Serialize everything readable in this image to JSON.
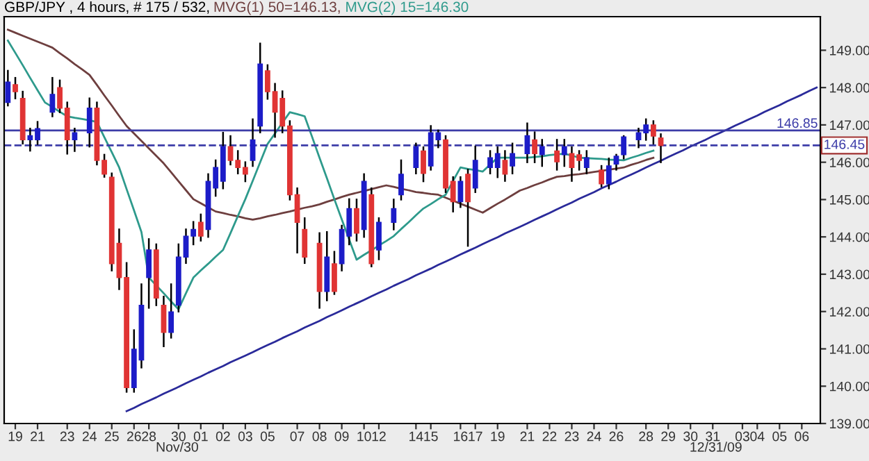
{
  "chart_data": {
    "type": "candlestick",
    "title": "GBP/JPY , 4 hours, # 175 / 532,",
    "categories": [
      null,
      "19",
      null,
      null,
      "21",
      null,
      null,
      null,
      "23",
      null,
      null,
      "24",
      null,
      null,
      "25",
      null,
      null,
      "26",
      null,
      "28",
      null,
      null,
      null,
      "30",
      null,
      null,
      "01",
      null,
      null,
      "02",
      null,
      null,
      "03",
      null,
      null,
      "05",
      null,
      null,
      null,
      "07",
      null,
      null,
      "08",
      null,
      null,
      "09",
      null,
      null,
      "10",
      null,
      "12",
      null,
      null,
      null,
      null,
      "14",
      null,
      "15",
      null,
      null,
      null,
      "16",
      null,
      "17",
      null,
      null,
      "19",
      null,
      null,
      null,
      "21",
      null,
      null,
      "22",
      null,
      null,
      "23",
      null,
      null,
      "24",
      null,
      null,
      "26",
      null,
      null,
      null,
      "28",
      null,
      null,
      "29",
      null,
      null,
      "30",
      null,
      null,
      "31",
      null,
      null,
      null,
      "03",
      null,
      "04",
      null,
      null,
      "05",
      null,
      null,
      "06",
      null,
      null
    ],
    "ohlc": [
      [
        147.6,
        148.45,
        147.52,
        148.15
      ],
      [
        148.08,
        148.26,
        147.71,
        147.89
      ],
      [
        147.71,
        147.89,
        146.5,
        146.6
      ],
      [
        146.6,
        146.9,
        146.31,
        146.71
      ],
      [
        146.6,
        147.08,
        146.49,
        146.9
      ],
      null,
      [
        147.34,
        148.26,
        147.23,
        147.82
      ],
      [
        148.0,
        148.19,
        147.34,
        147.45
      ],
      [
        147.45,
        147.6,
        146.23,
        146.6
      ],
      [
        146.6,
        146.9,
        146.3,
        146.79
      ],
      null,
      [
        146.79,
        147.71,
        146.42,
        147.45
      ],
      [
        147.45,
        147.6,
        145.94,
        146.05
      ],
      [
        146.05,
        146.2,
        145.61,
        145.68
      ],
      [
        145.6,
        145.7,
        143.1,
        143.28
      ],
      [
        143.83,
        144.2,
        142.6,
        142.91
      ],
      [
        142.91,
        143.3,
        139.85,
        139.96
      ],
      [
        139.96,
        141.5,
        139.85,
        140.99
      ],
      [
        140.7,
        142.73,
        140.5,
        142.17
      ],
      [
        142.91,
        143.94,
        142.1,
        143.65
      ],
      [
        143.65,
        143.8,
        142.17,
        142.36
      ],
      [
        142.17,
        142.4,
        141.07,
        141.44
      ],
      [
        141.44,
        142.73,
        141.3,
        141.99
      ],
      [
        142.17,
        143.8,
        142.0,
        143.46
      ],
      [
        143.46,
        144.2,
        143.3,
        144.02
      ],
      [
        144.02,
        144.4,
        143.8,
        144.2
      ],
      [
        144.39,
        144.6,
        143.9,
        144.02
      ],
      [
        144.2,
        145.68,
        144.0,
        145.49
      ],
      [
        145.31,
        146.05,
        145.1,
        145.86
      ],
      [
        145.49,
        146.79,
        145.3,
        146.42
      ],
      [
        146.42,
        146.7,
        145.94,
        146.05
      ],
      [
        146.05,
        146.3,
        145.7,
        145.86
      ],
      [
        145.86,
        146.0,
        145.49,
        145.68
      ],
      [
        146.05,
        147.15,
        145.9,
        146.6
      ],
      [
        146.97,
        149.18,
        146.8,
        148.63
      ],
      [
        148.45,
        148.6,
        147.7,
        147.89
      ],
      [
        147.89,
        148.1,
        146.68,
        147.34
      ],
      [
        147.71,
        147.9,
        146.8,
        146.97
      ],
      [
        146.97,
        147.1,
        145.0,
        145.13
      ],
      [
        145.13,
        145.3,
        143.58,
        144.39
      ],
      [
        144.2,
        144.5,
        143.3,
        143.46
      ],
      null,
      [
        143.83,
        144.1,
        142.1,
        142.54
      ],
      [
        142.54,
        144.13,
        142.3,
        143.46
      ],
      [
        143.28,
        143.6,
        142.47,
        142.54
      ],
      [
        143.28,
        144.3,
        143.1,
        144.2
      ],
      [
        144.02,
        145.01,
        143.8,
        144.76
      ],
      [
        144.76,
        145.0,
        143.9,
        144.1
      ],
      [
        144.2,
        145.68,
        144.0,
        145.49
      ],
      [
        145.13,
        145.3,
        143.21,
        143.28
      ],
      [
        143.65,
        144.5,
        143.4,
        144.39
      ],
      null,
      [
        144.39,
        145.0,
        144.2,
        144.76
      ],
      [
        145.13,
        146.05,
        145.0,
        145.68
      ],
      null,
      [
        145.86,
        146.5,
        145.7,
        146.42
      ],
      [
        146.3,
        146.4,
        145.49,
        145.7
      ],
      [
        145.9,
        146.97,
        145.8,
        146.79
      ],
      [
        146.6,
        146.85,
        146.4,
        146.79
      ],
      [
        146.6,
        146.7,
        145.2,
        145.31
      ],
      [
        145.49,
        145.6,
        144.68,
        144.94
      ],
      [
        144.94,
        145.6,
        144.8,
        145.49
      ],
      [
        145.68,
        145.8,
        143.76,
        144.94
      ],
      [
        145.31,
        146.42,
        145.2,
        146.05
      ],
      null,
      [
        145.86,
        146.3,
        145.7,
        146.12
      ],
      [
        145.86,
        146.4,
        145.6,
        146.23
      ],
      [
        146.05,
        146.3,
        145.5,
        145.68
      ],
      [
        145.9,
        146.5,
        145.7,
        146.23
      ],
      null,
      [
        146.23,
        147.04,
        146.0,
        146.71
      ],
      [
        146.6,
        146.8,
        146.0,
        146.23
      ],
      [
        146.2,
        146.6,
        145.9,
        146.42
      ],
      null,
      [
        146.3,
        146.6,
        145.8,
        146.01
      ],
      [
        146.2,
        146.6,
        145.9,
        146.42
      ],
      [
        146.23,
        146.4,
        145.5,
        145.86
      ],
      [
        146.2,
        146.3,
        145.8,
        146.05
      ],
      [
        145.86,
        146.3,
        145.7,
        146.12
      ],
      null,
      [
        145.79,
        145.9,
        145.35,
        145.42
      ],
      [
        145.42,
        146.1,
        145.3,
        145.9
      ],
      [
        145.95,
        146.2,
        145.8,
        146.16
      ],
      [
        146.2,
        146.7,
        146.1,
        146.68
      ],
      null,
      [
        146.6,
        146.9,
        146.4,
        146.79
      ],
      [
        146.79,
        147.15,
        146.6,
        147.0
      ],
      [
        147.0,
        147.1,
        146.5,
        146.7
      ],
      [
        146.65,
        146.75,
        146.0,
        146.45
      ],
      null,
      null,
      null,
      null,
      null,
      null,
      null,
      null,
      null,
      null,
      null,
      null,
      null,
      null,
      null,
      null,
      null,
      null,
      null,
      null,
      null
    ],
    "colors": [
      "#1c1cc8",
      "#e03434",
      "#e03434",
      "#1c1cc8",
      "#1c1cc8",
      null,
      "#1c1cc8",
      "#e03434",
      "#e03434",
      "#1c1cc8",
      null,
      "#1c1cc8",
      "#e03434",
      "#e03434",
      "#e03434",
      "#e03434",
      "#e03434",
      "#1c1cc8",
      "#1c1cc8",
      "#1c1cc8",
      "#e03434",
      "#e03434",
      "#1c1cc8",
      "#1c1cc8",
      "#1c1cc8",
      "#1c1cc8",
      "#e03434",
      "#1c1cc8",
      "#1c1cc8",
      "#1c1cc8",
      "#e03434",
      "#e03434",
      "#e03434",
      "#1c1cc8",
      "#1c1cc8",
      "#e03434",
      "#e03434",
      "#e03434",
      "#e03434",
      "#e03434",
      "#e03434",
      null,
      "#e03434",
      "#1c1cc8",
      "#e03434",
      "#1c1cc8",
      "#1c1cc8",
      "#e03434",
      "#1c1cc8",
      "#e03434",
      "#1c1cc8",
      null,
      "#1c1cc8",
      "#1c1cc8",
      null,
      "#1c1cc8",
      "#e03434",
      "#1c1cc8",
      "#1c1cc8",
      "#e03434",
      "#e03434",
      "#1c1cc8",
      "#e03434",
      "#1c1cc8",
      null,
      "#1c1cc8",
      "#1c1cc8",
      "#e03434",
      "#1c1cc8",
      null,
      "#1c1cc8",
      "#e03434",
      "#1c1cc8",
      null,
      "#e03434",
      "#1c1cc8",
      "#e03434",
      "#e03434",
      "#1c1cc8",
      null,
      "#e03434",
      "#1c1cc8",
      "#1c1cc8",
      "#1c1cc8",
      null,
      "#1c1cc8",
      "#1c1cc8",
      "#e03434",
      "#e03434",
      null,
      null,
      null,
      null,
      null,
      null,
      null,
      null,
      null,
      null,
      null,
      null,
      null,
      null,
      null,
      null,
      null,
      null,
      null,
      null,
      null
    ],
    "series": [
      {
        "type": "line",
        "name": "MVG(1) 50=146.13,",
        "color": "#6e3f3f",
        "values": [
          149.55,
          149.47,
          149.39,
          149.31,
          149.23,
          149.15,
          149.07,
          148.92,
          148.78,
          148.63,
          148.49,
          148.34,
          148.07,
          147.79,
          147.52,
          147.24,
          146.97,
          146.77,
          146.57,
          146.37,
          146.17,
          145.97,
          145.73,
          145.49,
          145.25,
          145.01,
          144.9,
          144.79,
          144.68,
          144.64,
          144.59,
          144.55,
          144.5,
          144.46,
          144.5,
          144.55,
          144.59,
          144.64,
          144.68,
          144.73,
          144.78,
          144.82,
          144.87,
          144.94,
          145.0,
          145.07,
          145.13,
          145.18,
          145.23,
          145.28,
          145.33,
          145.38,
          145.34,
          145.29,
          145.25,
          145.2,
          145.18,
          145.15,
          145.13,
          145.05,
          144.97,
          144.89,
          144.81,
          144.73,
          144.65,
          144.77,
          144.89,
          145.0,
          145.12,
          145.24,
          145.31,
          145.39,
          145.46,
          145.54,
          145.61,
          145.63,
          145.66,
          145.68,
          145.71,
          145.74,
          145.77,
          145.8,
          145.83,
          145.86,
          145.93,
          145.99,
          146.06,
          146.12,
          null,
          null,
          null,
          null,
          null,
          null,
          null,
          null,
          null,
          null,
          null,
          null,
          null,
          null,
          null,
          null,
          null,
          null,
          null,
          null,
          null,
          null
        ]
      },
      {
        "type": "line",
        "name": "MVG(2) 15=146.30",
        "color": "#2e9a8c",
        "values": [
          149.26,
          148.93,
          148.6,
          148.26,
          147.93,
          147.6,
          147.48,
          147.35,
          147.23,
          147.19,
          147.16,
          147.12,
          147.08,
          146.67,
          146.27,
          145.86,
          145.28,
          144.71,
          144.13,
          142.91,
          142.7,
          142.49,
          142.27,
          142.06,
          142.49,
          142.91,
          143.1,
          143.28,
          143.47,
          143.65,
          144.1,
          144.56,
          145.01,
          145.5,
          146.0,
          146.49,
          146.77,
          147.06,
          147.34,
          147.29,
          147.23,
          146.68,
          146.12,
          145.57,
          145.01,
          144.47,
          143.93,
          143.39,
          143.52,
          143.64,
          143.77,
          143.89,
          144.02,
          144.21,
          144.39,
          144.58,
          144.76,
          144.88,
          145.01,
          145.13,
          145.5,
          145.86,
          145.82,
          145.79,
          145.75,
          145.94,
          146.12,
          146.12,
          146.12,
          146.12,
          146.12,
          146.14,
          146.16,
          146.19,
          146.21,
          146.23,
          146.18,
          146.12,
          146.11,
          146.1,
          146.09,
          146.07,
          146.06,
          146.05,
          146.12,
          146.18,
          146.25,
          146.31,
          null,
          null,
          null,
          null,
          null,
          null,
          null,
          null,
          null,
          null,
          null,
          null,
          null,
          null,
          null,
          null,
          null,
          null,
          null,
          null,
          null,
          null
        ]
      },
      {
        "type": "line",
        "color": "#2a2a9a",
        "values": [
          null,
          null,
          null,
          null,
          null,
          null,
          null,
          null,
          null,
          null,
          null,
          null,
          null,
          null,
          null,
          null,
          139.33,
          139.42,
          139.52,
          139.61,
          139.7,
          139.8,
          139.89,
          139.98,
          140.08,
          140.17,
          140.26,
          140.36,
          140.45,
          140.54,
          140.64,
          140.73,
          140.82,
          140.91,
          141.01,
          141.1,
          141.19,
          141.29,
          141.38,
          141.47,
          141.57,
          141.66,
          141.75,
          141.85,
          141.94,
          142.03,
          142.13,
          142.22,
          142.31,
          142.41,
          142.5,
          142.59,
          142.69,
          142.78,
          142.87,
          142.97,
          143.06,
          143.15,
          143.25,
          143.34,
          143.43,
          143.53,
          143.62,
          143.71,
          143.81,
          143.9,
          143.99,
          144.09,
          144.18,
          144.27,
          144.36,
          144.46,
          144.55,
          144.64,
          144.74,
          144.83,
          144.92,
          145.02,
          145.11,
          145.2,
          145.3,
          145.39,
          145.48,
          145.58,
          145.67,
          145.76,
          145.86,
          145.95,
          146.04,
          146.14,
          146.23,
          146.32,
          146.42,
          146.51,
          146.6,
          146.7,
          146.79,
          146.88,
          146.98,
          147.07,
          147.16,
          147.25,
          147.35,
          147.44,
          147.53,
          147.63,
          147.72,
          147.81,
          147.91,
          148.0
        ]
      }
    ],
    "ref_lines": [
      {
        "axis": "y",
        "value": 146.85,
        "label": "146.85",
        "color": "#3c3ca8",
        "line_style": "solid"
      },
      {
        "axis": "y",
        "value": 146.45,
        "label": "146.45",
        "color": "#3c3ca8",
        "line_style": "dashed"
      }
    ],
    "ylim": [
      139,
      149.9
    ],
    "yticks": [
      {
        "value": 139,
        "label": "139.00"
      },
      {
        "value": 140,
        "label": "140.00"
      },
      {
        "value": 141,
        "label": "141.00"
      },
      {
        "value": 142,
        "label": "142.00"
      },
      {
        "value": 143,
        "label": "143.00"
      },
      {
        "value": 144,
        "label": "144.00"
      },
      {
        "value": 145,
        "label": "145.00"
      },
      {
        "value": 146,
        "label": "146.00"
      },
      {
        "value": 147,
        "label": "147.00"
      },
      {
        "value": 148,
        "label": "148.00"
      },
      {
        "value": 149,
        "label": "149.00"
      }
    ],
    "annotations": [
      "Nov/30",
      "12/31/09"
    ],
    "grid": false
  }
}
